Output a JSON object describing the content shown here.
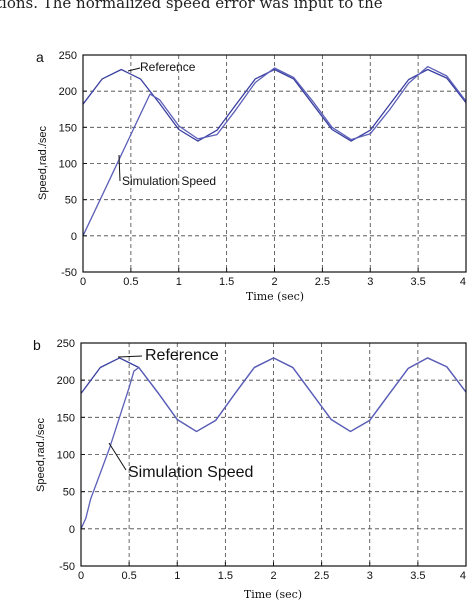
{
  "page": {
    "top_text": "tions. The normalized speed error was input to the"
  },
  "chart_data": [
    {
      "type": "line",
      "panel_label": "a",
      "xlabel": "Time (sec)",
      "ylabel": "Speed,rad./sec",
      "xlim": [
        0,
        4
      ],
      "ylim": [
        -50,
        250
      ],
      "xticks": [
        0,
        0.5,
        1,
        1.5,
        2,
        2.5,
        3,
        3.5,
        4
      ],
      "xtick_labels": [
        "0",
        "0.5",
        "1",
        "1.5",
        "2",
        "2.5",
        "3",
        "3.5",
        "4"
      ],
      "yticks": [
        -50,
        0,
        50,
        100,
        150,
        200,
        250
      ],
      "ytick_labels": [
        "-50",
        "0",
        "50",
        "100",
        "150",
        "200",
        "250"
      ],
      "grid": true,
      "series": [
        {
          "name": "Reference",
          "x": [
            0,
            0.2,
            0.4,
            0.6,
            0.8,
            1.0,
            1.2,
            1.4,
            1.6,
            1.8,
            2.0,
            2.2,
            2.4,
            2.6,
            2.8,
            3.0,
            3.2,
            3.4,
            3.6,
            3.8,
            4.0
          ],
          "values": [
            182,
            217,
            230,
            217,
            183,
            147,
            131,
            146,
            182,
            217,
            230,
            217,
            182,
            147,
            131,
            146,
            181,
            216,
            230,
            218,
            184
          ]
        },
        {
          "name": "Simulation Speed",
          "x": [
            0,
            0.2,
            0.4,
            0.6,
            0.7,
            0.8,
            1.0,
            1.2,
            1.4,
            1.6,
            1.8,
            2.0,
            2.2,
            2.4,
            2.6,
            2.8,
            3.0,
            3.2,
            3.4,
            3.6,
            3.8,
            4.0
          ],
          "values": [
            0,
            56,
            112,
            168,
            196,
            188,
            152,
            134,
            140,
            175,
            212,
            232,
            219,
            186,
            150,
            133,
            141,
            174,
            211,
            234,
            221,
            186
          ]
        }
      ],
      "annotations": [
        {
          "text": "Reference",
          "series": "Reference"
        },
        {
          "text": "Simulation Speed",
          "series": "Simulation Speed"
        }
      ]
    },
    {
      "type": "line",
      "panel_label": "b",
      "xlabel": "Time (sec)",
      "ylabel": "Speed,rad./sec",
      "xlim": [
        0,
        4
      ],
      "ylim": [
        -50,
        250
      ],
      "xticks": [
        0,
        0.5,
        1,
        1.5,
        2,
        2.5,
        3,
        3.5,
        4
      ],
      "xtick_labels": [
        "0",
        "0.5",
        "1",
        "1.5",
        "2",
        "2.5",
        "3",
        "3.5",
        "4"
      ],
      "yticks": [
        -50,
        0,
        50,
        100,
        150,
        200,
        250
      ],
      "ytick_labels": [
        "-50",
        "0",
        "50",
        "100",
        "150",
        "200",
        "250"
      ],
      "grid": true,
      "series": [
        {
          "name": "Reference",
          "x": [
            0,
            0.2,
            0.4,
            0.6,
            0.8,
            1.0,
            1.2,
            1.4,
            1.6,
            1.8,
            2.0,
            2.2,
            2.4,
            2.6,
            2.8,
            3.0,
            3.2,
            3.4,
            3.6,
            3.8,
            4.0
          ],
          "values": [
            182,
            217,
            230,
            217,
            183,
            147,
            131,
            146,
            182,
            217,
            230,
            217,
            182,
            147,
            131,
            146,
            181,
            216,
            230,
            218,
            184
          ]
        },
        {
          "name": "Simulation Speed",
          "x": [
            0,
            0.05,
            0.1,
            0.2,
            0.3,
            0.4,
            0.5,
            0.55,
            0.6,
            0.8,
            1.0,
            1.2,
            1.4,
            1.6,
            1.8,
            2.0,
            2.2,
            2.4,
            2.6,
            2.8,
            3.0,
            3.2,
            3.4,
            3.6,
            3.8,
            4.0
          ],
          "values": [
            0,
            14,
            40,
            75,
            110,
            150,
            190,
            212,
            217,
            183,
            147,
            131,
            146,
            182,
            217,
            230,
            217,
            182,
            147,
            131,
            146,
            181,
            216,
            230,
            218,
            184
          ]
        }
      ],
      "annotations": [
        {
          "text": "Reference",
          "series": "Reference"
        },
        {
          "text": "Simulation Speed",
          "series": "Simulation Speed"
        }
      ]
    }
  ]
}
